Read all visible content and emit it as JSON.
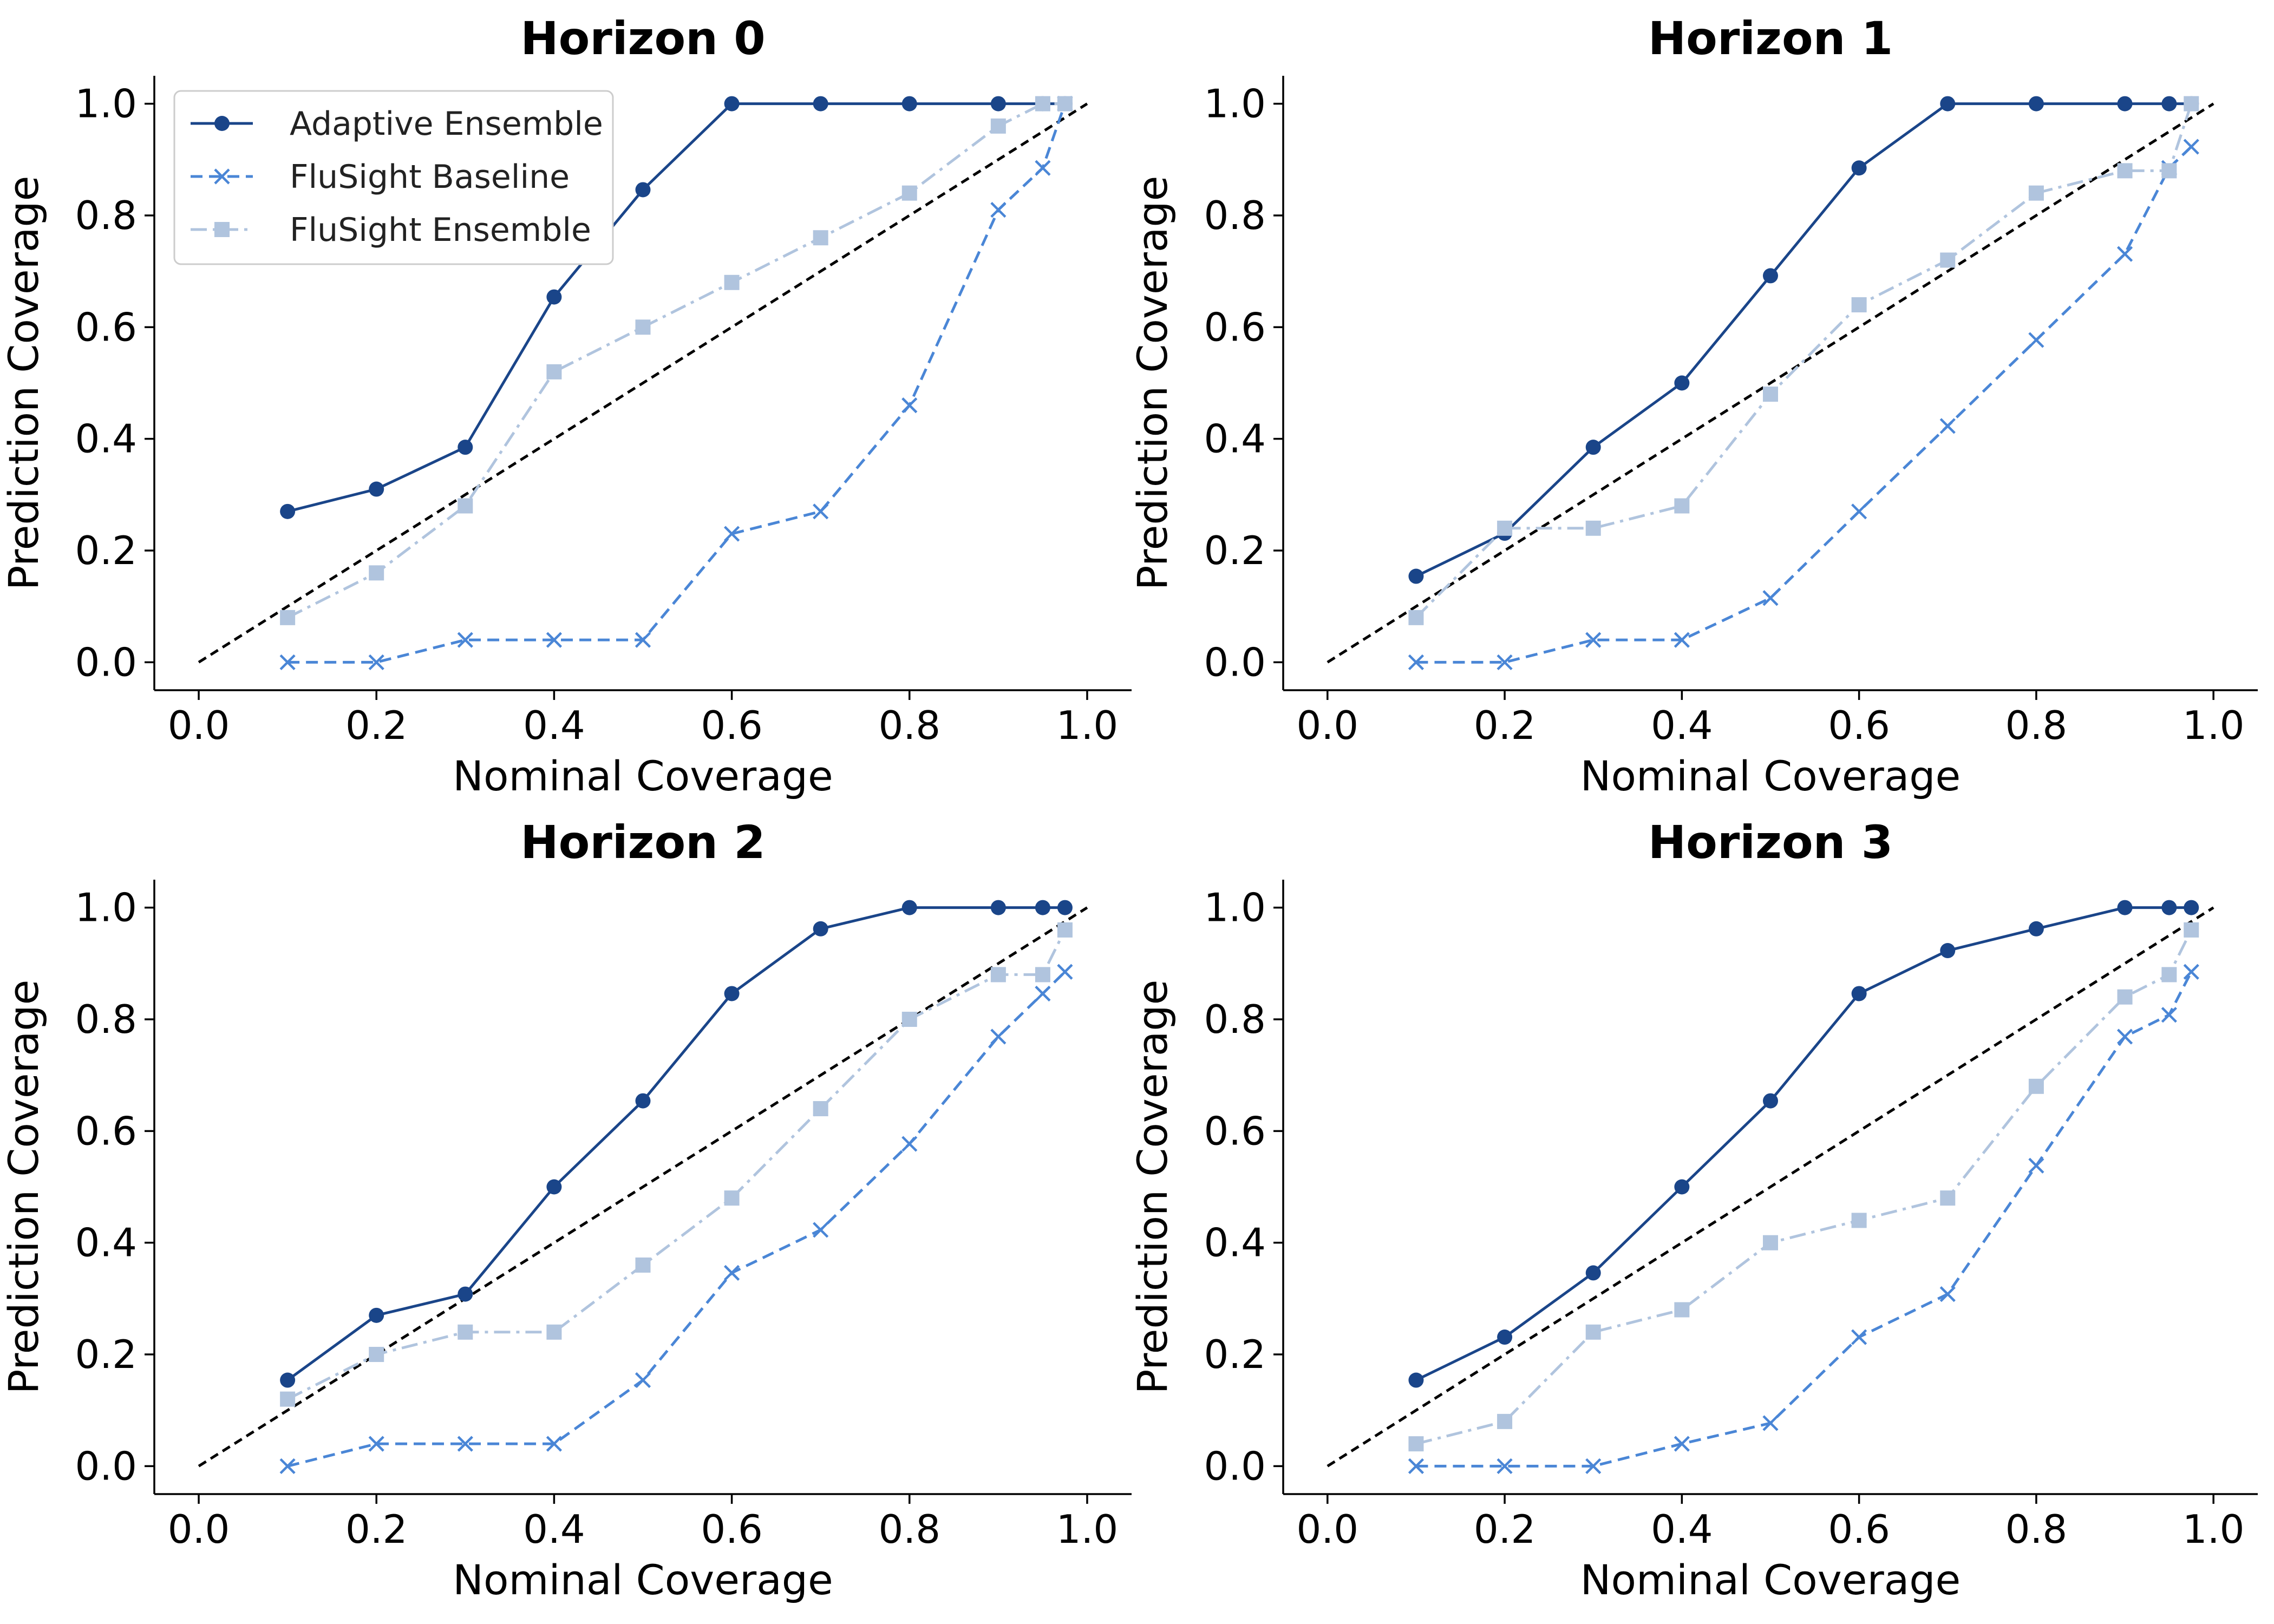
{
  "chart_data": [
    {
      "type": "line",
      "title": "Horizon 0",
      "xlabel": "Nominal Coverage",
      "ylabel": "Prediction Coverage",
      "xlim": [
        -0.05,
        1.05
      ],
      "ylim": [
        -0.05,
        1.05
      ],
      "xticks": [
        "0.0",
        "0.2",
        "0.4",
        "0.6",
        "0.8",
        "1.0"
      ],
      "yticks": [
        "0.0",
        "0.2",
        "0.4",
        "0.6",
        "0.8",
        "1.0"
      ],
      "grid": false,
      "legend": "top-left",
      "reference_line": {
        "x": [
          0,
          1
        ],
        "y": [
          0,
          1
        ],
        "style": "dashed",
        "color": "#000000"
      },
      "series": [
        {
          "name": "Adaptive Ensemble",
          "color": "#1a4589",
          "style": "solid",
          "marker": "circle",
          "x": [
            0.1,
            0.2,
            0.3,
            0.4,
            0.5,
            0.6,
            0.7,
            0.8,
            0.9,
            0.95,
            0.975
          ],
          "y": [
            0.27,
            0.31,
            0.385,
            0.654,
            0.846,
            1.0,
            1.0,
            1.0,
            1.0,
            1.0,
            1.0
          ]
        },
        {
          "name": "FluSight Baseline",
          "color": "#4a86d6",
          "style": "dashed",
          "marker": "x",
          "x": [
            0.1,
            0.2,
            0.3,
            0.4,
            0.5,
            0.6,
            0.7,
            0.8,
            0.9,
            0.95,
            0.975
          ],
          "y": [
            0.0,
            0.0,
            0.04,
            0.04,
            0.04,
            0.23,
            0.27,
            0.46,
            0.81,
            0.885,
            1.0
          ]
        },
        {
          "name": "FluSight Ensemble",
          "color": "#b0c4de",
          "style": "dashdot",
          "marker": "square",
          "x": [
            0.1,
            0.2,
            0.3,
            0.4,
            0.5,
            0.6,
            0.7,
            0.8,
            0.9,
            0.95,
            0.975
          ],
          "y": [
            0.08,
            0.16,
            0.28,
            0.52,
            0.6,
            0.68,
            0.76,
            0.84,
            0.96,
            1.0,
            1.0
          ]
        }
      ]
    },
    {
      "type": "line",
      "title": "Horizon 1",
      "xlabel": "Nominal Coverage",
      "ylabel": "Prediction Coverage",
      "xlim": [
        -0.05,
        1.05
      ],
      "ylim": [
        -0.05,
        1.05
      ],
      "xticks": [
        "0.0",
        "0.2",
        "0.4",
        "0.6",
        "0.8",
        "1.0"
      ],
      "yticks": [
        "0.0",
        "0.2",
        "0.4",
        "0.6",
        "0.8",
        "1.0"
      ],
      "grid": false,
      "reference_line": {
        "x": [
          0,
          1
        ],
        "y": [
          0,
          1
        ],
        "style": "dashed",
        "color": "#000000"
      },
      "series": [
        {
          "name": "Adaptive Ensemble",
          "color": "#1a4589",
          "style": "solid",
          "marker": "circle",
          "x": [
            0.1,
            0.2,
            0.3,
            0.4,
            0.5,
            0.6,
            0.7,
            0.8,
            0.9,
            0.95,
            0.975
          ],
          "y": [
            0.154,
            0.231,
            0.385,
            0.5,
            0.692,
            0.885,
            1.0,
            1.0,
            1.0,
            1.0,
            1.0
          ]
        },
        {
          "name": "FluSight Baseline",
          "color": "#4a86d6",
          "style": "dashed",
          "marker": "x",
          "x": [
            0.1,
            0.2,
            0.3,
            0.4,
            0.5,
            0.6,
            0.7,
            0.8,
            0.9,
            0.95,
            0.975
          ],
          "y": [
            0.0,
            0.0,
            0.04,
            0.04,
            0.115,
            0.27,
            0.423,
            0.577,
            0.731,
            0.885,
            0.923
          ]
        },
        {
          "name": "FluSight Ensemble",
          "color": "#b0c4de",
          "style": "dashdot",
          "marker": "square",
          "x": [
            0.1,
            0.2,
            0.3,
            0.4,
            0.5,
            0.6,
            0.7,
            0.8,
            0.9,
            0.95,
            0.975
          ],
          "y": [
            0.08,
            0.24,
            0.24,
            0.28,
            0.48,
            0.64,
            0.72,
            0.84,
            0.88,
            0.88,
            1.0
          ]
        }
      ]
    },
    {
      "type": "line",
      "title": "Horizon 2",
      "xlabel": "Nominal Coverage",
      "ylabel": "Prediction Coverage",
      "xlim": [
        -0.05,
        1.05
      ],
      "ylim": [
        -0.05,
        1.05
      ],
      "xticks": [
        "0.0",
        "0.2",
        "0.4",
        "0.6",
        "0.8",
        "1.0"
      ],
      "yticks": [
        "0.0",
        "0.2",
        "0.4",
        "0.6",
        "0.8",
        "1.0"
      ],
      "grid": false,
      "reference_line": {
        "x": [
          0,
          1
        ],
        "y": [
          0,
          1
        ],
        "style": "dashed",
        "color": "#000000"
      },
      "series": [
        {
          "name": "Adaptive Ensemble",
          "color": "#1a4589",
          "style": "solid",
          "marker": "circle",
          "x": [
            0.1,
            0.2,
            0.3,
            0.4,
            0.5,
            0.6,
            0.7,
            0.8,
            0.9,
            0.95,
            0.975
          ],
          "y": [
            0.154,
            0.27,
            0.308,
            0.5,
            0.654,
            0.846,
            0.962,
            1.0,
            1.0,
            1.0,
            1.0
          ]
        },
        {
          "name": "FluSight Baseline",
          "color": "#4a86d6",
          "style": "dashed",
          "marker": "x",
          "x": [
            0.1,
            0.2,
            0.3,
            0.4,
            0.5,
            0.6,
            0.7,
            0.8,
            0.9,
            0.95,
            0.975
          ],
          "y": [
            0.0,
            0.04,
            0.04,
            0.04,
            0.154,
            0.346,
            0.423,
            0.577,
            0.769,
            0.846,
            0.885
          ]
        },
        {
          "name": "FluSight Ensemble",
          "color": "#b0c4de",
          "style": "dashdot",
          "marker": "square",
          "x": [
            0.1,
            0.2,
            0.3,
            0.4,
            0.5,
            0.6,
            0.7,
            0.8,
            0.9,
            0.95,
            0.975
          ],
          "y": [
            0.12,
            0.2,
            0.24,
            0.24,
            0.36,
            0.48,
            0.64,
            0.8,
            0.88,
            0.88,
            0.96
          ]
        }
      ]
    },
    {
      "type": "line",
      "title": "Horizon 3",
      "xlabel": "Nominal Coverage",
      "ylabel": "Prediction Coverage",
      "xlim": [
        -0.05,
        1.05
      ],
      "ylim": [
        -0.05,
        1.05
      ],
      "xticks": [
        "0.0",
        "0.2",
        "0.4",
        "0.6",
        "0.8",
        "1.0"
      ],
      "yticks": [
        "0.0",
        "0.2",
        "0.4",
        "0.6",
        "0.8",
        "1.0"
      ],
      "grid": false,
      "reference_line": {
        "x": [
          0,
          1
        ],
        "y": [
          0,
          1
        ],
        "style": "dashed",
        "color": "#000000"
      },
      "series": [
        {
          "name": "Adaptive Ensemble",
          "color": "#1a4589",
          "style": "solid",
          "marker": "circle",
          "x": [
            0.1,
            0.2,
            0.3,
            0.4,
            0.5,
            0.6,
            0.7,
            0.8,
            0.9,
            0.95,
            0.975
          ],
          "y": [
            0.154,
            0.231,
            0.346,
            0.5,
            0.654,
            0.846,
            0.923,
            0.962,
            1.0,
            1.0,
            1.0
          ]
        },
        {
          "name": "FluSight Baseline",
          "color": "#4a86d6",
          "style": "dashed",
          "marker": "x",
          "x": [
            0.1,
            0.2,
            0.3,
            0.4,
            0.5,
            0.6,
            0.7,
            0.8,
            0.9,
            0.95,
            0.975
          ],
          "y": [
            0.0,
            0.0,
            0.0,
            0.04,
            0.077,
            0.231,
            0.308,
            0.538,
            0.769,
            0.808,
            0.885
          ]
        },
        {
          "name": "FluSight Ensemble",
          "color": "#b0c4de",
          "style": "dashdot",
          "marker": "square",
          "x": [
            0.1,
            0.2,
            0.3,
            0.4,
            0.5,
            0.6,
            0.7,
            0.8,
            0.9,
            0.95,
            0.975
          ],
          "y": [
            0.04,
            0.08,
            0.24,
            0.28,
            0.4,
            0.44,
            0.48,
            0.68,
            0.84,
            0.88,
            0.96
          ]
        }
      ]
    }
  ]
}
